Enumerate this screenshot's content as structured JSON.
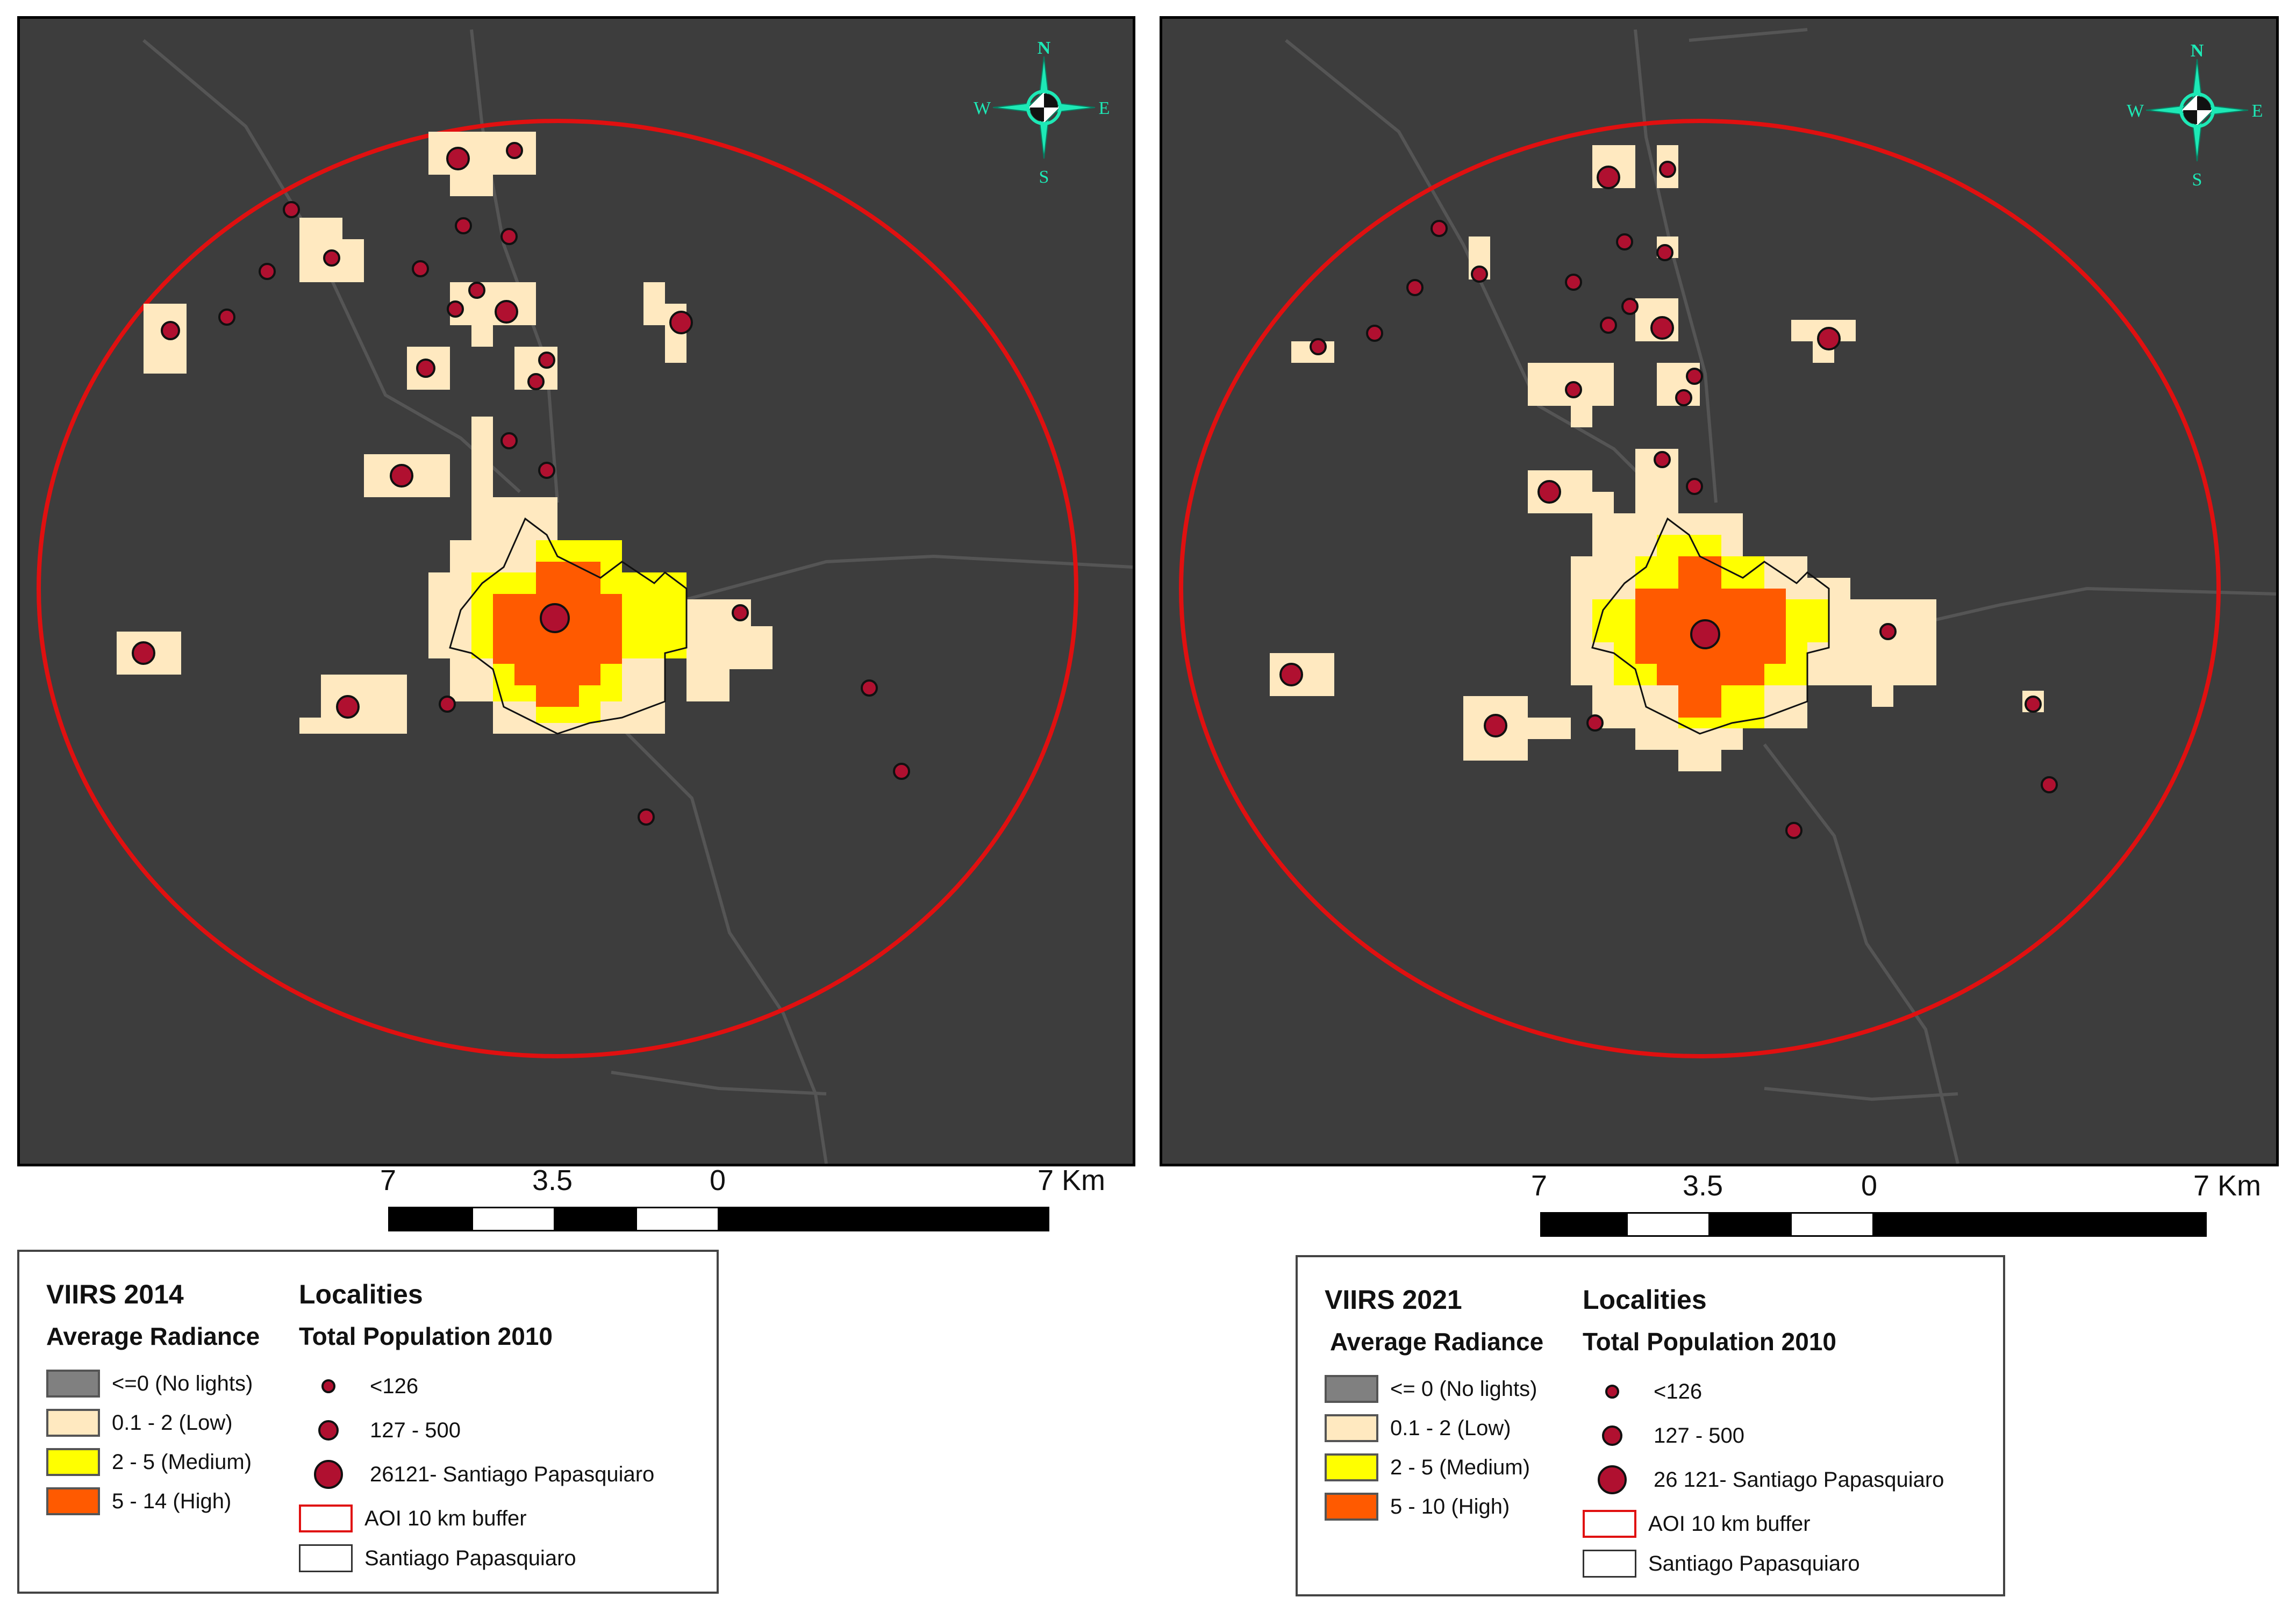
{
  "maps": [
    {
      "id": "2014",
      "compass": {
        "n": "N",
        "s": "S",
        "e": "E",
        "w": "W"
      },
      "scale": {
        "labels": [
          "7",
          "3.5",
          "0",
          "7 Km"
        ]
      },
      "legend": {
        "radiance_title": "VIIRS 2014",
        "radiance_subtitle": "Average Radiance",
        "radiance_classes": [
          {
            "label": "<=0 (No lights)",
            "color": "#808080"
          },
          {
            "label": "0.1 - 2 (Low)",
            "color": "#ffe9c0"
          },
          {
            "label": "2 - 5 (Medium)",
            "color": "#ffff00"
          },
          {
            "label": "5 - 14 (High)",
            "color": "#ff5a00"
          }
        ],
        "localities_title": "Localities",
        "population_subtitle": "Total Population 2010",
        "population_classes": [
          {
            "label": "<126",
            "size": "small"
          },
          {
            "label": "127 - 500",
            "size": "medium"
          },
          {
            "label": "26121- Santiago Papasquiaro",
            "size": "large"
          }
        ],
        "aoi_label": "AOI 10 km buffer",
        "boundary_label": "Santiago Papasquiaro"
      }
    },
    {
      "id": "2021",
      "compass": {
        "n": "N",
        "s": "S",
        "e": "E",
        "w": "W"
      },
      "scale": {
        "labels": [
          "7",
          "3.5",
          "0",
          "7 Km"
        ]
      },
      "legend": {
        "radiance_title": "VIIRS 2021",
        "radiance_subtitle": "Average Radiance",
        "radiance_classes": [
          {
            "label": "<= 0 (No lights)",
            "color": "#808080"
          },
          {
            "label": "0.1 - 2 (Low)",
            "color": "#ffe9c0"
          },
          {
            "label": "2 - 5 (Medium)",
            "color": "#ffff00"
          },
          {
            "label": "5 - 10 (High)",
            "color": "#ff5a00"
          }
        ],
        "localities_title": "Localities",
        "population_subtitle": "Total Population 2010",
        "population_classes": [
          {
            "label": "<126",
            "size": "small"
          },
          {
            "label": "127 - 500",
            "size": "medium"
          },
          {
            "label": "26 121- Santiago Papasquiaro",
            "size": "large"
          }
        ],
        "aoi_label": "AOI 10 km buffer",
        "boundary_label": "Santiago Papasquiaro"
      }
    }
  ],
  "colors": {
    "map_background": "#3d3d3d",
    "aoi_buffer": "#e01010",
    "compass": "#1de9b6",
    "locality_fill": "#b01030",
    "road": "#555555"
  }
}
